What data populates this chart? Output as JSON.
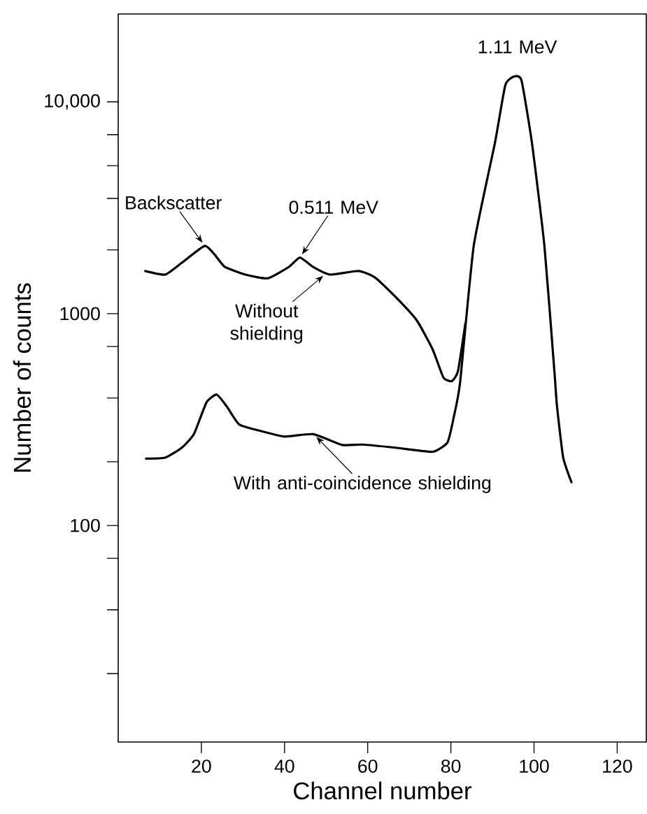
{
  "chart_data": {
    "type": "line",
    "xlabel": "Channel number",
    "ylabel": "Number of counts",
    "log": "y",
    "xlim": [
      0,
      127
    ],
    "xticks": [
      20,
      40,
      60,
      80,
      100,
      120
    ],
    "ylim": [
      9.5,
      26000
    ],
    "yticks": [
      {
        "value": 20,
        "label": null
      },
      {
        "value": 40,
        "label": null
      },
      {
        "value": 70,
        "label": null
      },
      100,
      {
        "value": 200,
        "label": null
      },
      {
        "value": 400,
        "label": null
      },
      {
        "value": 700,
        "label": null
      },
      1000,
      {
        "value": 2000,
        "label": null
      },
      {
        "value": 3500,
        "label": null
      },
      {
        "value": 5000,
        "label": null
      },
      {
        "value": 7000,
        "label": null
      },
      {
        "value": 10000,
        "label": "10,000"
      }
    ],
    "series": [
      {
        "color": "#000000",
        "x": [
          6.5,
          11.3,
          15.3,
          20.8,
          23.2,
          25.7,
          31.1,
          36,
          41,
          43.7,
          46.9,
          50.9,
          57.8,
          61.8,
          66.7,
          71.8,
          75.6,
          78.2,
          80.2,
          81.7,
          83.5
        ],
        "values": [
          1590,
          1530,
          1740,
          2090,
          1900,
          1660,
          1520,
          1470,
          1660,
          1840,
          1660,
          1530,
          1590,
          1480,
          1200,
          930,
          680,
          500,
          480,
          535,
          900
        ]
      },
      {
        "color": "#000000",
        "x": [
          6.7,
          11.3,
          15.3,
          18.2,
          21.2,
          23.7,
          26.1,
          29.1,
          34.1,
          40,
          46.9,
          53.9,
          58.8,
          66.7,
          75.6,
          79.2,
          80.7,
          82.2,
          85.5,
          90.6,
          93.1,
          95.3,
          97,
          99.5,
          102.5,
          104.9,
          105.5,
          107,
          109
        ],
        "values": [
          207,
          209,
          233,
          270,
          380,
          415,
          365,
          300,
          280,
          263,
          270,
          240,
          241,
          233,
          223,
          247,
          325,
          470,
          2090,
          6400,
          12000,
          13200,
          12600,
          6400,
          2090,
          535,
          370,
          210,
          160
        ]
      }
    ],
    "annotations": [
      {
        "text": "1.11 MeV",
        "x": 95.3,
        "y": 13200
      },
      {
        "text": "Backscatter",
        "x": 20.8,
        "y": 2090
      },
      {
        "text": "0.511 MeV",
        "x": 43.7,
        "y": 1840
      },
      {
        "text": "Without shielding",
        "x": 50,
        "y": 1550
      },
      {
        "text": "With anti-coincidence shielding",
        "x": 47,
        "y": 270
      }
    ]
  }
}
